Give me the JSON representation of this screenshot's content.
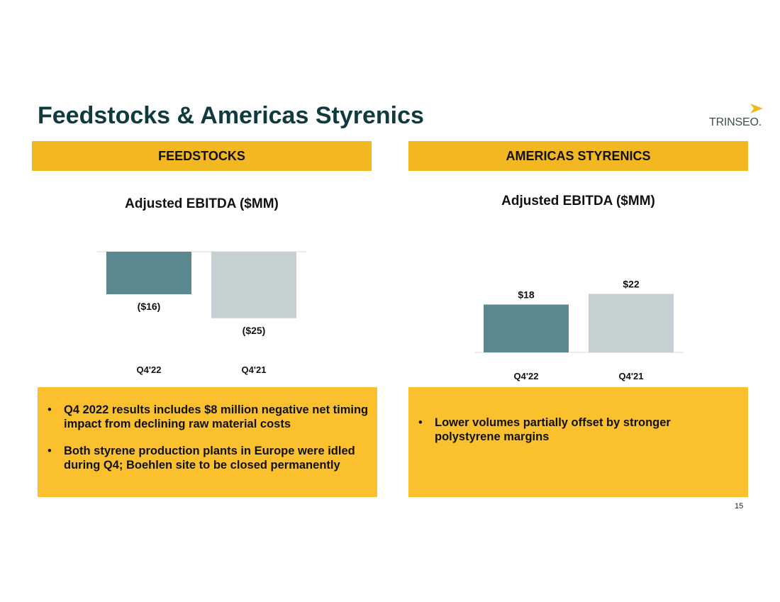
{
  "slide": {
    "title": "Feedstocks & Americas Styrenics",
    "logo_text": "TRINSEO.",
    "page_number": "15",
    "colors": {
      "title": "#0f3b3f",
      "header_band": "#f3b722",
      "note_box": "#fbc02d",
      "bar_current": "#5a8a90",
      "bar_prior": "#c4d0d2"
    }
  },
  "panels": [
    {
      "header": "FEEDSTOCKS",
      "bullets": [
        "Q4 2022 results includes $8 million negative net timing impact from declining raw material costs",
        "Both styrene production plants in Europe were idled during Q4; Boehlen site to be closed permanently"
      ]
    },
    {
      "header": "AMERICAS STYRENICS",
      "bullets": [
        "Lower volumes partially offset by stronger polystyrene margins"
      ]
    }
  ],
  "chart_data": [
    {
      "type": "bar",
      "title": "Adjusted EBITDA ($MM)",
      "categories": [
        "Q4'22",
        "Q4'21"
      ],
      "values": [
        -16,
        -25
      ],
      "value_labels": [
        "($16)",
        "($25)"
      ],
      "colors": [
        "#5a8a90",
        "#c4d0d2"
      ],
      "grid": false,
      "legend": "none"
    },
    {
      "type": "bar",
      "title": "Adjusted EBITDA ($MM)",
      "categories": [
        "Q4'22",
        "Q4'21"
      ],
      "values": [
        18,
        22
      ],
      "value_labels": [
        "$18",
        "$22"
      ],
      "colors": [
        "#5a8a90",
        "#c4d0d2"
      ],
      "grid": false,
      "legend": "none"
    }
  ]
}
